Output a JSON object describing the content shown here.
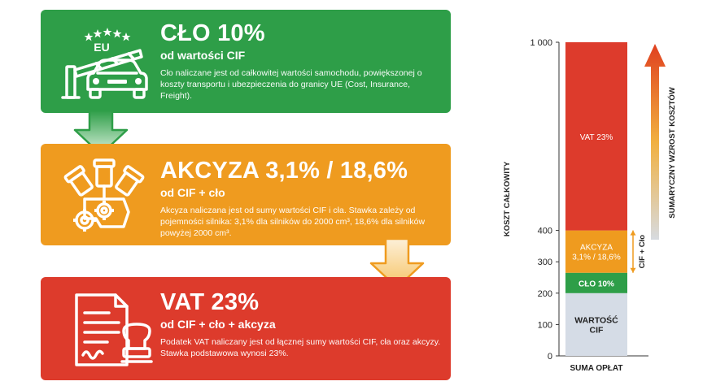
{
  "cards": [
    {
      "id": "clo",
      "title": "CŁO 10%",
      "subtitle": "od wartości CIF",
      "description": "Cło naliczane jest od całkowitej wartości samochodu, powiększonej o koszty transportu i ubezpieczenia do granicy UE (Cost, Insurance, Freight).",
      "icon": "eu-border-car-icon",
      "icon_label": "EU",
      "color": "#2e9e48"
    },
    {
      "id": "akcyza",
      "title": "AKCYZA 3,1% / 18,6%",
      "subtitle": "od CIF + cło",
      "description": "Akcyza naliczana jest od sumy wartości CIF i cła. Stawka zależy od pojemności silnika: 3,1% dla silników do 2000 cm³, 18,6% dla silników powyżej 2000 cm³.",
      "icon": "engine-gears-icon",
      "color": "#ef9b1f"
    },
    {
      "id": "vat",
      "title": "VAT 23%",
      "subtitle": "od CIF + cło + akcyza",
      "description": "Podatek VAT naliczany jest od łącznej sumy wartości CIF, cła oraz akcyzy. Stawka podstawowa wynosi 23%.",
      "icon": "document-stamp-icon",
      "color": "#dd3b2c"
    }
  ],
  "chart_data": {
    "type": "bar",
    "stacked": true,
    "categories": [
      "SUMA OPŁAT"
    ],
    "ylabel": "KOSZT CAŁKOWITY",
    "ylim": [
      0,
      1000
    ],
    "y_ticks": [
      0,
      100,
      200,
      300,
      400,
      "1 000"
    ],
    "series": [
      {
        "name": "WARTOŚĆ CIF",
        "values": [
          200
        ],
        "color": "#d5dce6",
        "text_color": "#222222"
      },
      {
        "name": "CŁO 10%",
        "values": [
          65
        ],
        "color": "#2e9e48",
        "text_color": "#ffffff"
      },
      {
        "name": "AKCYZA 3,1% / 18,6%",
        "values": [
          135
        ],
        "color": "#ef9b1f",
        "text_color": "#ffffff"
      },
      {
        "name": "VAT 23%",
        "values": [
          600
        ],
        "color": "#dd3b2c",
        "text_color": "#ffffff"
      }
    ],
    "annotations": {
      "bracket": "CIF + Cło",
      "trend": "SUMARYCZNY WZROST KOSZTÓW"
    },
    "grid": false
  }
}
